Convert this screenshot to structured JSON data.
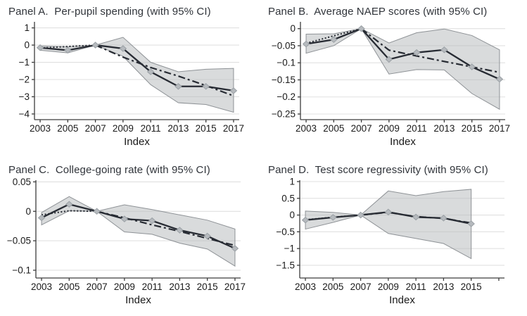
{
  "figure": {
    "description": "Four-panel event-study figure with 95% confidence bands",
    "colors": {
      "band_fill": "rgba(186,189,192,0.55)",
      "band_edge": "#8e9296",
      "line": "#272b33",
      "marker_fill": "#b6babe",
      "marker_edge": "#9aa0a5",
      "grid": "#e0e0e0",
      "axis": "#3c3c3c",
      "tick_text": "#1a1a1a",
      "title_text": "#30343a"
    }
  },
  "chart_data": [
    {
      "panel_id": "a",
      "type": "line",
      "title": "Panel A.  Per-pupil spending (with 95% CI)",
      "xlabel": "Index",
      "x": [
        2003,
        2005,
        2007,
        2009,
        2011,
        2013,
        2015,
        2017
      ],
      "series": [
        {
          "name": "point-estimates",
          "line": "solid",
          "marker": "diamond",
          "x": [
            2003,
            2005,
            2007,
            2009,
            2011,
            2013,
            2015,
            2017
          ],
          "values": [
            -0.15,
            -0.3,
            0,
            -0.2,
            -1.55,
            -2.4,
            -2.4,
            -2.65
          ]
        },
        {
          "name": "linear-pre-trend",
          "line": "dotted",
          "x": [
            2003,
            2005,
            2007
          ],
          "values": [
            -0.17,
            -0.085,
            0
          ]
        },
        {
          "name": "linear-post-trend",
          "line": "dashdot",
          "x": [
            2007,
            2009,
            2011,
            2013,
            2015,
            2017
          ],
          "values": [
            0,
            -0.7,
            -1.3,
            -1.8,
            -2.35,
            -2.95
          ]
        }
      ],
      "ci_band": {
        "name": "95% CI",
        "upper": [
          -0.05,
          -0.1,
          0,
          0.45,
          -1.0,
          -1.55,
          -1.4,
          -1.35
        ],
        "lower": [
          -0.3,
          -0.45,
          0,
          -0.65,
          -2.3,
          -3.35,
          -3.45,
          -3.9
        ]
      },
      "xlim": [
        2002.59,
        2017.41
      ],
      "ylim": [
        -4.33,
        1.27
      ],
      "yticks": {
        "values": [
          1,
          0,
          -1,
          -2,
          -3,
          -4
        ],
        "labels": [
          "1",
          "0",
          "−1",
          "−2",
          "−3",
          "−4"
        ]
      },
      "xticks": {
        "values": [
          2003,
          2005,
          2007,
          2009,
          2011,
          2013,
          2015,
          2017
        ],
        "labels": [
          "2003",
          "2005",
          "2007",
          "2009",
          "2011",
          "2013",
          "2015",
          "2017"
        ]
      }
    },
    {
      "panel_id": "b",
      "type": "line",
      "title": "Panel B.  Average NAEP scores (with 95% CI)",
      "xlabel": "Index",
      "x": [
        2003,
        2005,
        2007,
        2009,
        2011,
        2013,
        2015,
        2017
      ],
      "series": [
        {
          "name": "point-estimates",
          "line": "solid",
          "marker": "diamond",
          "x": [
            2003,
            2005,
            2007,
            2009,
            2011,
            2013,
            2015,
            2017
          ],
          "values": [
            -0.045,
            -0.032,
            0,
            -0.09,
            -0.07,
            -0.062,
            -0.112,
            -0.148
          ]
        },
        {
          "name": "linear-pre-trend",
          "line": "dotted",
          "x": [
            2003,
            2005,
            2007
          ],
          "values": [
            -0.043,
            -0.021,
            0
          ]
        },
        {
          "name": "linear-post-trend",
          "line": "dashdot",
          "x": [
            2007,
            2009,
            2011,
            2013,
            2015,
            2017
          ],
          "values": [
            0,
            -0.063,
            -0.08,
            -0.096,
            -0.112,
            -0.128
          ]
        }
      ],
      "ci_band": {
        "name": "95% CI",
        "upper": [
          -0.016,
          -0.015,
          0,
          -0.042,
          -0.012,
          -0.001,
          -0.02,
          -0.062
        ],
        "lower": [
          -0.072,
          -0.05,
          0,
          -0.133,
          -0.12,
          -0.121,
          -0.19,
          -0.236
        ]
      },
      "xlim": [
        2002.59,
        2017.41
      ],
      "ylim": [
        -0.2665,
        0.0159
      ],
      "yticks": {
        "values": [
          0,
          -0.05,
          -0.1,
          -0.15,
          -0.2,
          -0.25
        ],
        "labels": [
          "0",
          "−0.05",
          "−0.1",
          "−0.15",
          "−0.2",
          "−0.25"
        ]
      },
      "xticks": {
        "values": [
          2003,
          2005,
          2007,
          2009,
          2011,
          2013,
          2015,
          2017
        ],
        "labels": [
          "2003",
          "2005",
          "2007",
          "2009",
          "2011",
          "2013",
          "2015",
          "2017"
        ]
      }
    },
    {
      "panel_id": "c",
      "type": "line",
      "title": "Panel C.  College-going rate (with 95% CI)",
      "xlabel": "Index",
      "x": [
        2003,
        2005,
        2007,
        2009,
        2011,
        2013,
        2015,
        2017
      ],
      "series": [
        {
          "name": "point-estimates",
          "line": "solid",
          "marker": "diamond",
          "x": [
            2003,
            2005,
            2007,
            2009,
            2011,
            2013,
            2015,
            2017
          ],
          "values": [
            -0.011,
            0.012,
            0,
            -0.013,
            -0.016,
            -0.032,
            -0.042,
            -0.063
          ]
        },
        {
          "name": "linear-pre-trend",
          "line": "dotted",
          "x": [
            2003,
            2005,
            2007
          ],
          "values": [
            -0.006,
            0.001,
            0
          ]
        },
        {
          "name": "linear-post-trend",
          "line": "dashdot",
          "x": [
            2007,
            2009,
            2011,
            2013,
            2015,
            2017
          ],
          "values": [
            0,
            -0.011,
            -0.023,
            -0.034,
            -0.046,
            -0.058
          ]
        }
      ],
      "ci_band": {
        "name": "95% CI",
        "upper": [
          -0.002,
          0.025,
          0,
          0.011,
          0.003,
          -0.006,
          -0.015,
          -0.03
        ],
        "lower": [
          -0.023,
          0.001,
          0,
          -0.035,
          -0.039,
          -0.054,
          -0.064,
          -0.093
        ]
      },
      "xlim": [
        2002.59,
        2017.41
      ],
      "ylim": [
        -0.1132,
        0.0505
      ],
      "yticks": {
        "values": [
          0.05,
          0,
          -0.05,
          -0.1
        ],
        "labels": [
          "0.05",
          "0",
          "−0.05",
          "−0.1"
        ]
      },
      "xticks": {
        "values": [
          2003,
          2005,
          2007,
          2009,
          2011,
          2013,
          2015,
          2017
        ],
        "labels": [
          "2003",
          "2005",
          "2007",
          "2009",
          "2011",
          "2013",
          "2015",
          "2017"
        ]
      }
    },
    {
      "panel_id": "d",
      "type": "line",
      "title": "Panel D.  Test score regressivity (with 95% CI)",
      "xlabel": "Index",
      "x": [
        2003,
        2005,
        2007,
        2009,
        2011,
        2013,
        2015
      ],
      "series": [
        {
          "name": "point-estimates",
          "line": "solid",
          "marker": "diamond",
          "x": [
            2003,
            2005,
            2007,
            2009,
            2011,
            2013,
            2015
          ],
          "values": [
            -0.15,
            -0.07,
            0,
            0.09,
            -0.06,
            -0.09,
            -0.26
          ]
        },
        {
          "name": "linear-pre-trend",
          "line": "dotted",
          "x": [
            2003,
            2005,
            2007
          ],
          "values": [
            -0.14,
            -0.065,
            0
          ]
        },
        {
          "name": "linear-post-trend",
          "line": "dashdot",
          "x": [
            2007,
            2009,
            2011,
            2013,
            2015
          ],
          "values": [
            0,
            0.08,
            -0.045,
            -0.1,
            -0.235
          ]
        }
      ],
      "ci_band": {
        "name": "95% CI",
        "upper": [
          0.12,
          0.08,
          0,
          0.72,
          0.58,
          0.7,
          0.77
        ],
        "lower": [
          -0.42,
          -0.22,
          0,
          -0.55,
          -0.7,
          -0.85,
          -1.3
        ]
      },
      "xlim": [
        2002.59,
        2017.41
      ],
      "ylim": [
        -1.88,
        1.0
      ],
      "yticks": {
        "values": [
          1,
          0.5,
          0,
          -0.5,
          -1,
          -1.5
        ],
        "labels": [
          "1",
          "0.5",
          "0",
          "−0.5",
          "−1",
          "−1.5"
        ]
      },
      "xticks": {
        "values": [
          2003,
          2005,
          2007,
          2009,
          2011,
          2013,
          2015,
          2017
        ],
        "labels": [
          "2003",
          "2005",
          "2007",
          "2009",
          "2011",
          "2013",
          "2015",
          ""
        ]
      }
    }
  ]
}
